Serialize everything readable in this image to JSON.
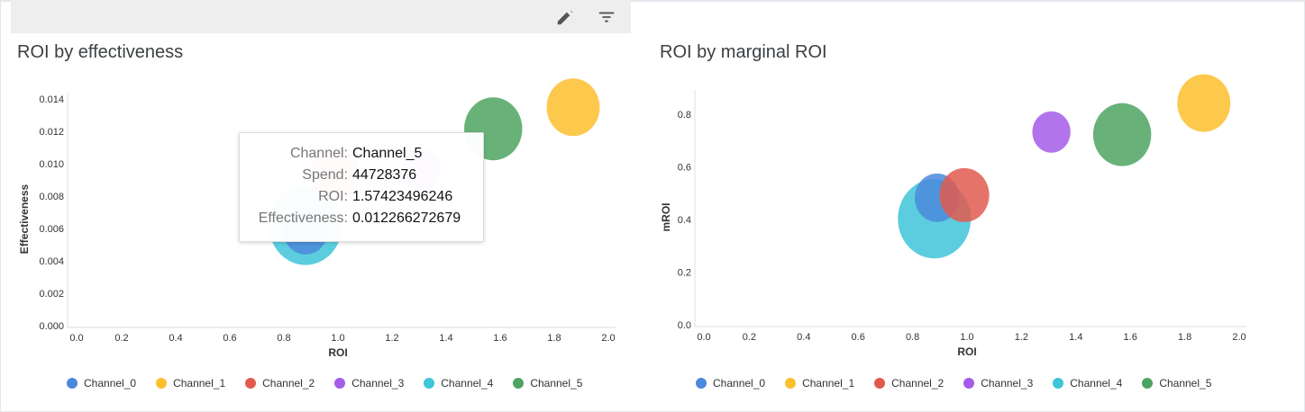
{
  "toolbar": {
    "edit_icon": "pencil-icon",
    "filter_icon": "filter-icon"
  },
  "colors": {
    "Channel_0": "#4a89dc",
    "Channel_1": "#fbc02d",
    "Channel_2": "#e25a4f",
    "Channel_3": "#a55ce8",
    "Channel_4": "#3fc4d8",
    "Channel_5": "#4da462"
  },
  "legend": [
    "Channel_0",
    "Channel_1",
    "Channel_2",
    "Channel_3",
    "Channel_4",
    "Channel_5"
  ],
  "tooltip": {
    "rows": [
      {
        "key": "Channel:",
        "value": "Channel_5"
      },
      {
        "key": "Spend:",
        "value": "44728376"
      },
      {
        "key": "ROI:",
        "value": "1.57423496246"
      },
      {
        "key": "Effectiveness:",
        "value": "0.012266272679"
      }
    ]
  },
  "chart_data": [
    {
      "type": "scatter",
      "title": "ROI by effectiveness",
      "xlabel": "ROI",
      "ylabel": "Effectiveness",
      "xlim": [
        0,
        2.0
      ],
      "ylim": [
        0,
        0.0145
      ],
      "xticks": [
        "0.0",
        "0.2",
        "0.4",
        "0.6",
        "0.8",
        "1.0",
        "1.2",
        "1.4",
        "1.6",
        "1.8",
        "2.0"
      ],
      "yticks": [
        "0.000",
        "0.002",
        "0.004",
        "0.006",
        "0.008",
        "0.010",
        "0.012",
        "0.014"
      ],
      "size_field": "Spend",
      "points": [
        {
          "channel": "Channel_4",
          "x": 0.88,
          "y": 0.0063,
          "size": 70700000
        },
        {
          "channel": "Channel_0",
          "x": 0.88,
          "y": 0.006,
          "size": 26600000
        },
        {
          "channel": "Channel_2",
          "x": 0.99,
          "y": 0.0095,
          "size": 32900000
        },
        {
          "channel": "Channel_3",
          "x": 1.31,
          "y": 0.0098,
          "size": 19400000
        },
        {
          "channel": "Channel_5",
          "x": 1.57423496246,
          "y": 0.012266272679,
          "size": 44728376
        },
        {
          "channel": "Channel_1",
          "x": 1.87,
          "y": 0.0136,
          "size": 37400000
        }
      ],
      "legend_position": "bottom",
      "grid": false
    },
    {
      "type": "scatter",
      "title": "ROI by marginal ROI",
      "xlabel": "ROI",
      "ylabel": "mROI",
      "xlim": [
        0,
        2.0
      ],
      "ylim": [
        0,
        0.9
      ],
      "xticks": [
        "0.0",
        "0.2",
        "0.4",
        "0.6",
        "0.8",
        "1.0",
        "1.2",
        "1.4",
        "1.6",
        "1.8",
        "2.0"
      ],
      "yticks": [
        "0.0",
        "0.2",
        "0.4",
        "0.6",
        "0.8"
      ],
      "size_field": "Spend",
      "points": [
        {
          "channel": "Channel_4",
          "x": 0.88,
          "y": 0.41,
          "size": 70700000
        },
        {
          "channel": "Channel_0",
          "x": 0.89,
          "y": 0.49,
          "size": 26600000
        },
        {
          "channel": "Channel_2",
          "x": 0.99,
          "y": 0.5,
          "size": 32900000
        },
        {
          "channel": "Channel_3",
          "x": 1.31,
          "y": 0.74,
          "size": 19400000
        },
        {
          "channel": "Channel_5",
          "x": 1.57,
          "y": 0.73,
          "size": 44728376
        },
        {
          "channel": "Channel_1",
          "x": 1.87,
          "y": 0.85,
          "size": 37400000
        }
      ],
      "legend_position": "bottom",
      "grid": false
    }
  ]
}
